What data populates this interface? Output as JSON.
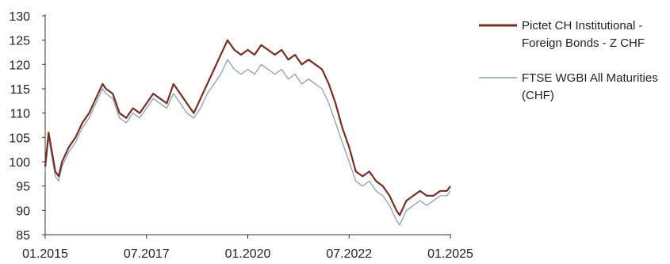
{
  "chart_data": {
    "type": "line",
    "title": "",
    "xlabel": "",
    "ylabel": "",
    "ylim": [
      85,
      130
    ],
    "y_ticks": [
      "85",
      "90",
      "95",
      "100",
      "105",
      "110",
      "115",
      "120",
      "125",
      "130"
    ],
    "x_ticks": [
      "01.2015",
      "07.2017",
      "01.2020",
      "07.2022",
      "01.2025"
    ],
    "x_range": [
      "2015-01",
      "2025-01"
    ],
    "grid": false,
    "legend_position": "right",
    "series": [
      {
        "name": "Pictet CH Institutional - Foreign Bonds - Z CHF",
        "name_lines": [
          "Pictet CH Institutional -",
          "Foreign Bonds - Z CHF"
        ],
        "color": "#7a2e22",
        "x": [
          "2015-01",
          "2015-02",
          "2015-03",
          "2015-04",
          "2015-05",
          "2015-06",
          "2015-08",
          "2015-10",
          "2015-12",
          "2016-02",
          "2016-04",
          "2016-06",
          "2016-07",
          "2016-09",
          "2016-11",
          "2017-01",
          "2017-03",
          "2017-05",
          "2017-07",
          "2017-09",
          "2017-11",
          "2018-01",
          "2018-03",
          "2018-05",
          "2018-07",
          "2018-09",
          "2018-11",
          "2019-01",
          "2019-03",
          "2019-05",
          "2019-07",
          "2019-08",
          "2019-09",
          "2019-11",
          "2020-01",
          "2020-03",
          "2020-05",
          "2020-07",
          "2020-09",
          "2020-11",
          "2021-01",
          "2021-03",
          "2021-05",
          "2021-07",
          "2021-09",
          "2021-11",
          "2022-01",
          "2022-03",
          "2022-05",
          "2022-07",
          "2022-09",
          "2022-11",
          "2023-01",
          "2023-03",
          "2023-05",
          "2023-07",
          "2023-09",
          "2023-10",
          "2023-12",
          "2024-02",
          "2024-04",
          "2024-06",
          "2024-08",
          "2024-10",
          "2024-12",
          "2025-01"
        ],
        "y": [
          99,
          106,
          102,
          98,
          97,
          100,
          103,
          105,
          108,
          110,
          113,
          116,
          115,
          114,
          110,
          109,
          111,
          110,
          112,
          114,
          113,
          112,
          116,
          114,
          112,
          110,
          113,
          116,
          119,
          122,
          125,
          124,
          123,
          122,
          123,
          122,
          124,
          123,
          122,
          123,
          121,
          122,
          120,
          121,
          120,
          119,
          116,
          112,
          107,
          103,
          98,
          97,
          98,
          96,
          95,
          93,
          90,
          89,
          92,
          93,
          94,
          93,
          93,
          94,
          94,
          95
        ]
      },
      {
        "name": "FTSE WGBI All Maturities (CHF)",
        "name_lines": [
          "FTSE WGBI All Maturities",
          "(CHF)"
        ],
        "color": "#8aa0b8",
        "x": [
          "2015-01",
          "2015-02",
          "2015-03",
          "2015-04",
          "2015-05",
          "2015-06",
          "2015-08",
          "2015-10",
          "2015-12",
          "2016-02",
          "2016-04",
          "2016-06",
          "2016-07",
          "2016-09",
          "2016-11",
          "2017-01",
          "2017-03",
          "2017-05",
          "2017-07",
          "2017-09",
          "2017-11",
          "2018-01",
          "2018-03",
          "2018-05",
          "2018-07",
          "2018-09",
          "2018-11",
          "2019-01",
          "2019-03",
          "2019-05",
          "2019-07",
          "2019-08",
          "2019-09",
          "2019-11",
          "2020-01",
          "2020-03",
          "2020-05",
          "2020-07",
          "2020-09",
          "2020-11",
          "2021-01",
          "2021-03",
          "2021-05",
          "2021-07",
          "2021-09",
          "2021-11",
          "2022-01",
          "2022-03",
          "2022-05",
          "2022-07",
          "2022-09",
          "2022-11",
          "2023-01",
          "2023-03",
          "2023-05",
          "2023-07",
          "2023-09",
          "2023-10",
          "2023-12",
          "2024-02",
          "2024-04",
          "2024-06",
          "2024-08",
          "2024-10",
          "2024-12",
          "2025-01"
        ],
        "y": [
          98,
          105,
          101,
          97,
          96,
          99,
          102,
          104,
          107,
          109,
          112,
          115,
          114,
          113,
          109,
          108,
          110,
          109,
          111,
          113,
          112,
          111,
          114,
          112,
          110,
          109,
          111,
          114,
          116,
          118,
          121,
          120,
          119,
          118,
          119,
          118,
          120,
          119,
          118,
          119,
          117,
          118,
          116,
          117,
          116,
          115,
          112,
          108,
          104,
          100,
          96,
          95,
          96,
          94,
          93,
          91,
          88,
          87,
          90,
          91,
          92,
          91,
          92,
          93,
          93,
          94
        ]
      }
    ]
  }
}
